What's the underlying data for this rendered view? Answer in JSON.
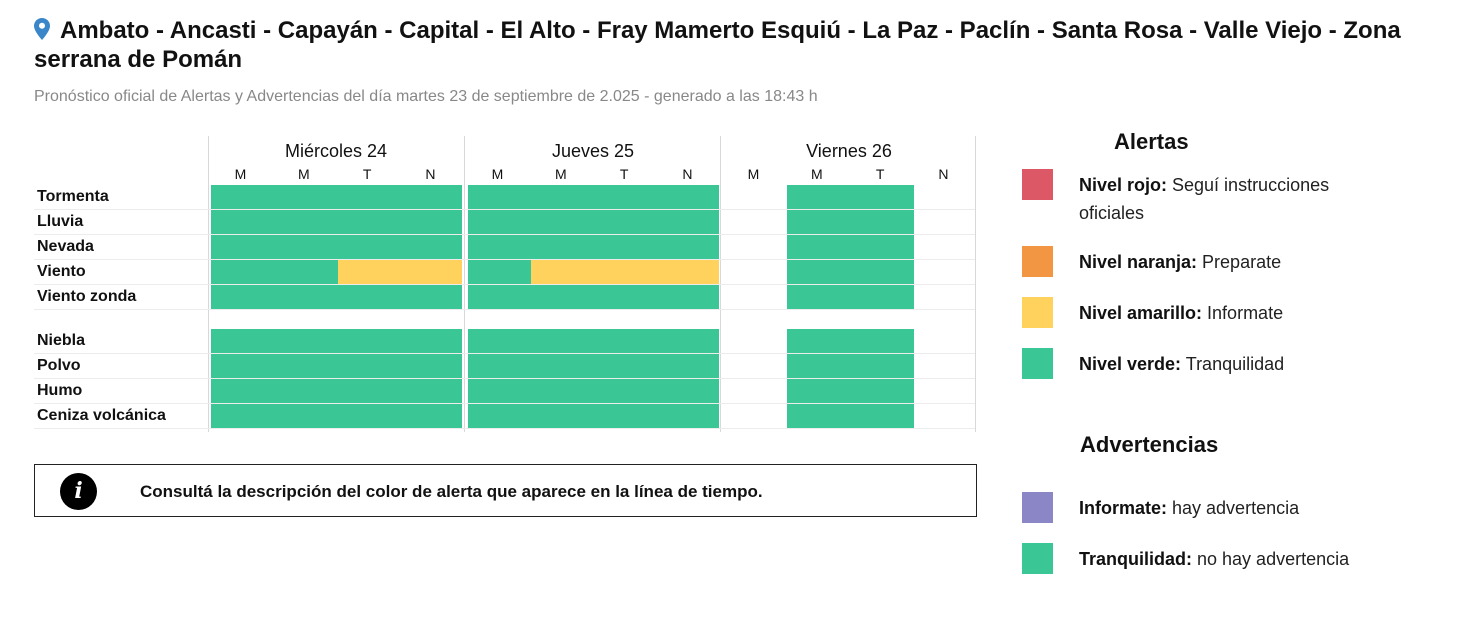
{
  "header": {
    "icon": "map-pin-icon",
    "title": "Ambato - Ancasti - Capayán - Capital - El Alto - Fray Mamerto Esquiú - La Paz - Paclín - Santa Rosa - Valle Viejo - Zona serrana de Pomán",
    "subtitle": "Pronóstico oficial de Alertas y Advertencias del día martes 23 de septiembre de 2.025 - generado a las 18:43 h"
  },
  "colors": {
    "green": "#3ac795",
    "yellow": "#fed25c",
    "red": "#dc5866",
    "orange": "#f39644",
    "purple": "#8b86c5",
    "grid_line": "#d8d8d8"
  },
  "chart_data": {
    "type": "table",
    "title": "Timeline de alertas por fenómeno",
    "days": [
      {
        "label": "Miércoles 24",
        "slots": [
          "M",
          "M",
          "T",
          "N"
        ]
      },
      {
        "label": "Jueves 25",
        "slots": [
          "M",
          "M",
          "T",
          "N"
        ]
      },
      {
        "label": "Viernes 26",
        "slots": [
          "M",
          "M",
          "T",
          "N"
        ]
      }
    ],
    "alert_rows": [
      {
        "label": "Tormenta",
        "levels": [
          [
            "verde",
            "verde",
            "verde",
            "verde"
          ],
          [
            "verde",
            "verde",
            "verde",
            "verde"
          ],
          [
            null,
            "verde",
            "verde",
            null
          ]
        ]
      },
      {
        "label": "Lluvia",
        "levels": [
          [
            "verde",
            "verde",
            "verde",
            "verde"
          ],
          [
            "verde",
            "verde",
            "verde",
            "verde"
          ],
          [
            null,
            "verde",
            "verde",
            null
          ]
        ]
      },
      {
        "label": "Nevada",
        "levels": [
          [
            "verde",
            "verde",
            "verde",
            "verde"
          ],
          [
            "verde",
            "verde",
            "verde",
            "verde"
          ],
          [
            null,
            "verde",
            "verde",
            null
          ]
        ]
      },
      {
        "label": "Viento",
        "levels": [
          [
            "verde",
            "verde",
            "amarillo",
            "amarillo"
          ],
          [
            "verde",
            "amarillo",
            "amarillo",
            "amarillo"
          ],
          [
            null,
            "verde",
            "verde",
            null
          ]
        ]
      },
      {
        "label": "Viento zonda",
        "levels": [
          [
            "verde",
            "verde",
            "verde",
            "verde"
          ],
          [
            "verde",
            "verde",
            "verde",
            "verde"
          ],
          [
            null,
            "verde",
            "verde",
            null
          ]
        ]
      }
    ],
    "warning_rows": [
      {
        "label": "Niebla",
        "levels": [
          [
            "verde",
            "verde",
            "verde",
            "verde"
          ],
          [
            "verde",
            "verde",
            "verde",
            "verde"
          ],
          [
            null,
            "verde",
            "verde",
            null
          ]
        ]
      },
      {
        "label": "Polvo",
        "levels": [
          [
            "verde",
            "verde",
            "verde",
            "verde"
          ],
          [
            "verde",
            "verde",
            "verde",
            "verde"
          ],
          [
            null,
            "verde",
            "verde",
            null
          ]
        ]
      },
      {
        "label": "Humo",
        "levels": [
          [
            "verde",
            "verde",
            "verde",
            "verde"
          ],
          [
            "verde",
            "verde",
            "verde",
            "verde"
          ],
          [
            null,
            "verde",
            "verde",
            null
          ]
        ]
      },
      {
        "label": "Ceniza volcánica",
        "levels": [
          [
            "verde",
            "verde",
            "verde",
            "verde"
          ],
          [
            "verde",
            "verde",
            "verde",
            "verde"
          ],
          [
            null,
            "verde",
            "verde",
            null
          ]
        ]
      }
    ],
    "legend_position": "right"
  },
  "info": {
    "icon": "info-icon",
    "text": "Consultá la descripción del color de alerta que aparece en la línea de tiempo."
  },
  "legend": {
    "alerts_title": "Alertas",
    "alerts": [
      {
        "key": "red",
        "bold": "Nivel rojo:",
        "text": " Seguí instrucciones oficiales"
      },
      {
        "key": "orange",
        "bold": "Nivel naranja:",
        "text": " Preparate"
      },
      {
        "key": "yellow",
        "bold": "Nivel amarillo:",
        "text": " Informate"
      },
      {
        "key": "green",
        "bold": "Nivel verde:",
        "text": " Tranquilidad"
      }
    ],
    "warnings_title": "Advertencias",
    "warnings": [
      {
        "key": "purple",
        "bold": "Informate:",
        "text": " hay advertencia"
      },
      {
        "key": "green",
        "bold": "Tranquilidad:",
        "text": " no hay advertencia"
      }
    ]
  }
}
